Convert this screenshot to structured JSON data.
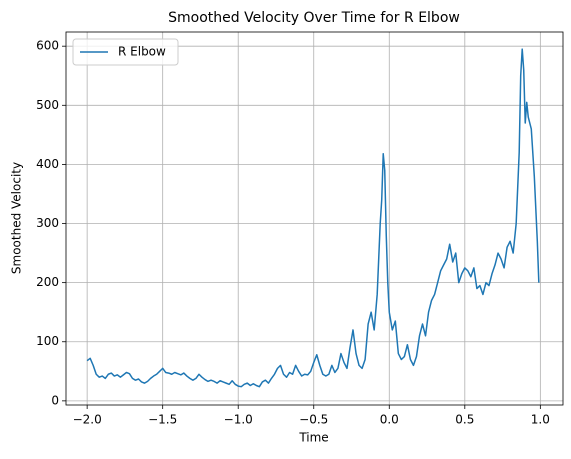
{
  "chart_data": {
    "type": "line",
    "title": "Smoothed Velocity Over Time for R Elbow",
    "xlabel": "Time",
    "ylabel": "Smoothed Velocity",
    "x": [
      -2.0,
      -1.98,
      -1.96,
      -1.94,
      -1.92,
      -1.9,
      -1.88,
      -1.86,
      -1.84,
      -1.82,
      -1.8,
      -1.78,
      -1.76,
      -1.74,
      -1.72,
      -1.7,
      -1.68,
      -1.66,
      -1.64,
      -1.62,
      -1.6,
      -1.58,
      -1.56,
      -1.54,
      -1.52,
      -1.5,
      -1.48,
      -1.46,
      -1.44,
      -1.42,
      -1.4,
      -1.38,
      -1.36,
      -1.34,
      -1.32,
      -1.3,
      -1.28,
      -1.26,
      -1.24,
      -1.22,
      -1.2,
      -1.18,
      -1.16,
      -1.14,
      -1.12,
      -1.1,
      -1.08,
      -1.06,
      -1.04,
      -1.02,
      -1.0,
      -0.98,
      -0.96,
      -0.94,
      -0.92,
      -0.9,
      -0.88,
      -0.86,
      -0.84,
      -0.82,
      -0.8,
      -0.78,
      -0.76,
      -0.74,
      -0.72,
      -0.7,
      -0.68,
      -0.66,
      -0.64,
      -0.62,
      -0.6,
      -0.58,
      -0.56,
      -0.54,
      -0.52,
      -0.5,
      -0.48,
      -0.46,
      -0.44,
      -0.42,
      -0.4,
      -0.38,
      -0.36,
      -0.34,
      -0.32,
      -0.3,
      -0.28,
      -0.26,
      -0.24,
      -0.22,
      -0.2,
      -0.18,
      -0.16,
      -0.14,
      -0.12,
      -0.1,
      -0.08,
      -0.06,
      -0.05,
      -0.04,
      -0.03,
      -0.02,
      -0.01,
      0.0,
      0.02,
      0.04,
      0.06,
      0.08,
      0.1,
      0.12,
      0.14,
      0.16,
      0.18,
      0.2,
      0.22,
      0.24,
      0.26,
      0.28,
      0.3,
      0.32,
      0.34,
      0.36,
      0.38,
      0.4,
      0.42,
      0.44,
      0.46,
      0.48,
      0.5,
      0.52,
      0.54,
      0.56,
      0.58,
      0.6,
      0.62,
      0.64,
      0.66,
      0.68,
      0.7,
      0.72,
      0.74,
      0.76,
      0.78,
      0.8,
      0.82,
      0.84,
      0.86,
      0.87,
      0.88,
      0.89,
      0.9,
      0.91,
      0.92,
      0.94,
      0.96,
      0.98,
      0.99
    ],
    "series": [
      {
        "name": "R Elbow",
        "color": "#1f77b4",
        "values": [
          68,
          72,
          60,
          45,
          40,
          42,
          38,
          45,
          47,
          42,
          44,
          40,
          44,
          48,
          46,
          38,
          35,
          37,
          32,
          30,
          33,
          38,
          42,
          45,
          50,
          55,
          48,
          47,
          45,
          48,
          46,
          44,
          47,
          42,
          38,
          35,
          38,
          45,
          40,
          36,
          33,
          35,
          33,
          30,
          34,
          32,
          30,
          28,
          34,
          28,
          25,
          24,
          28,
          30,
          26,
          29,
          26,
          24,
          32,
          35,
          30,
          38,
          45,
          55,
          60,
          45,
          40,
          48,
          45,
          60,
          50,
          42,
          45,
          44,
          50,
          65,
          78,
          60,
          45,
          42,
          45,
          60,
          48,
          55,
          80,
          65,
          55,
          90,
          120,
          80,
          60,
          55,
          70,
          130,
          150,
          120,
          180,
          300,
          340,
          418,
          390,
          280,
          200,
          150,
          120,
          135,
          80,
          70,
          75,
          95,
          70,
          60,
          75,
          110,
          130,
          110,
          150,
          170,
          180,
          200,
          220,
          230,
          240,
          265,
          235,
          250,
          200,
          215,
          225,
          220,
          210,
          225,
          190,
          195,
          180,
          200,
          195,
          215,
          230,
          250,
          240,
          225,
          260,
          270,
          250,
          300,
          420,
          550,
          595,
          560,
          470,
          505,
          480,
          460,
          380,
          270,
          200
        ]
      }
    ],
    "xlim": [
      -2.14,
      1.15
    ],
    "ylim": [
      -7,
      624
    ],
    "xticks": [
      {
        "value": -2.0,
        "label": "−2.0"
      },
      {
        "value": -1.5,
        "label": "−1.5"
      },
      {
        "value": -1.0,
        "label": "−1.0"
      },
      {
        "value": -0.5,
        "label": "−0.5"
      },
      {
        "value": 0.0,
        "label": "0.0"
      },
      {
        "value": 0.5,
        "label": "0.5"
      },
      {
        "value": 1.0,
        "label": "1.0"
      }
    ],
    "yticks": [
      0,
      100,
      200,
      300,
      400,
      500,
      600
    ],
    "grid": true,
    "legend": "upper left"
  }
}
